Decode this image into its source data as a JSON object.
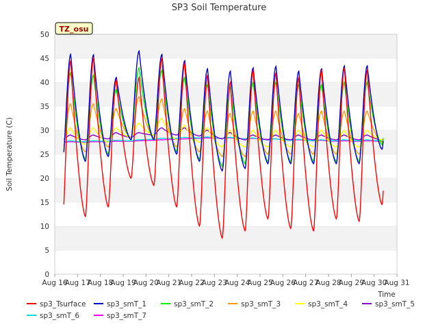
{
  "chart_data": {
    "type": "line",
    "title": "SP3 Soil Temperature",
    "ylabel": "Soil Temperature (C)",
    "xlabel": "Time",
    "ylim": [
      0,
      50
    ],
    "xlim": [
      16,
      31
    ],
    "yticks": [
      0,
      5,
      10,
      15,
      20,
      25,
      30,
      35,
      40,
      45,
      50
    ],
    "xticks": [
      {
        "v": 16,
        "label": "Aug 16"
      },
      {
        "v": 17,
        "label": "Aug 17"
      },
      {
        "v": 18,
        "label": "Aug 18"
      },
      {
        "v": 19,
        "label": "Aug 19"
      },
      {
        "v": 20,
        "label": "Aug 20"
      },
      {
        "v": 21,
        "label": "Aug 21"
      },
      {
        "v": 22,
        "label": "Aug 22"
      },
      {
        "v": 23,
        "label": "Aug 23"
      },
      {
        "v": 24,
        "label": "Aug 24"
      },
      {
        "v": 25,
        "label": "Aug 25"
      },
      {
        "v": 26,
        "label": "Aug 26"
      },
      {
        "v": 27,
        "label": "Aug 27"
      },
      {
        "v": 28,
        "label": "Aug 28"
      },
      {
        "v": 29,
        "label": "Aug 29"
      },
      {
        "v": 30,
        "label": "Aug 30"
      },
      {
        "v": 31,
        "label": "Aug 31"
      }
    ],
    "annotation": "TZ_osu",
    "grid": "horizontal bands",
    "legend_position": "bottom",
    "x_unit": "day of August",
    "days": [
      16,
      17,
      18,
      19,
      20,
      21,
      22,
      23,
      24,
      25,
      26,
      27,
      28,
      29,
      30
    ],
    "series": [
      {
        "name": "sp3_Tsurface",
        "color": "#ff0000",
        "daily_max": [
          44.5,
          45.0,
          40.5,
          41.0,
          45.0,
          44.0,
          41.5,
          40.0,
          42.5,
          42.0,
          41.0,
          42.5,
          43.0,
          42.5,
          42.0
        ],
        "daily_min": [
          11.0,
          12.0,
          14.0,
          20.0,
          18.5,
          14.0,
          10.0,
          7.5,
          9.0,
          11.5,
          9.5,
          9.0,
          11.5,
          11.0,
          14.5
        ]
      },
      {
        "name": "sp3_smT_1",
        "color": "#0000cc",
        "daily_max": [
          45.8,
          45.7,
          41.0,
          46.5,
          45.8,
          44.5,
          42.8,
          42.3,
          43.0,
          43.3,
          42.3,
          42.8,
          43.4,
          43.4,
          43.0
        ],
        "daily_min": [
          23.0,
          23.5,
          24.5,
          28.0,
          28.0,
          25.0,
          23.5,
          21.5,
          22.0,
          23.0,
          23.0,
          23.0,
          23.0,
          23.0,
          26.0
        ]
      },
      {
        "name": "sp3_smT_2",
        "color": "#00ee00",
        "daily_max": [
          42.0,
          41.5,
          38.5,
          43.0,
          42.5,
          41.0,
          39.5,
          39.0,
          40.0,
          40.0,
          39.5,
          39.5,
          40.0,
          40.0,
          40.0
        ],
        "daily_min": [
          24.0,
          24.0,
          25.0,
          28.0,
          28.0,
          25.5,
          24.0,
          22.5,
          23.0,
          23.5,
          23.5,
          23.5,
          23.5,
          23.5,
          27.0
        ]
      },
      {
        "name": "sp3_smT_3",
        "color": "#ff9900",
        "daily_max": [
          35.5,
          35.5,
          34.5,
          37.0,
          36.5,
          34.5,
          34.0,
          33.5,
          34.0,
          34.0,
          33.5,
          34.0,
          34.0,
          34.0,
          34.0
        ],
        "daily_min": [
          25.5,
          25.5,
          26.5,
          28.5,
          28.5,
          26.5,
          25.5,
          24.5,
          24.5,
          25.0,
          25.0,
          25.0,
          25.0,
          25.0,
          27.5
        ]
      },
      {
        "name": "sp3_smT_4",
        "color": "#ffff00",
        "daily_max": [
          30.5,
          30.5,
          30.5,
          31.5,
          32.5,
          31.0,
          30.5,
          30.0,
          30.0,
          30.0,
          30.0,
          30.0,
          30.0,
          30.0,
          30.0
        ],
        "daily_min": [
          27.0,
          27.0,
          27.5,
          28.5,
          29.0,
          28.0,
          27.5,
          26.5,
          26.5,
          26.5,
          26.5,
          26.5,
          26.5,
          26.5,
          28.0
        ]
      },
      {
        "name": "sp3_smT_5",
        "color": "#8800cc",
        "daily_max": [
          29.0,
          29.0,
          29.5,
          29.5,
          30.5,
          30.5,
          30.0,
          29.5,
          29.0,
          29.0,
          29.0,
          29.0,
          29.0,
          29.0,
          29.0
        ],
        "daily_min": [
          28.0,
          28.0,
          28.2,
          28.5,
          29.0,
          29.0,
          28.8,
          28.2,
          28.0,
          28.0,
          28.0,
          28.0,
          28.0,
          28.0,
          28.0
        ]
      },
      {
        "name": "sp3_smT_6",
        "color": "#00dddd",
        "daily_max": [
          27.8,
          27.8,
          27.9,
          28.0,
          28.3,
          28.5,
          28.6,
          28.5,
          28.4,
          28.2,
          28.1,
          28.0,
          28.0,
          28.0,
          28.0
        ],
        "daily_min": [
          27.6,
          27.6,
          27.7,
          27.8,
          28.1,
          28.3,
          28.4,
          28.3,
          28.2,
          28.0,
          27.9,
          27.8,
          27.8,
          27.8,
          27.8
        ]
      },
      {
        "name": "sp3_smT_7",
        "color": "#ff00ff",
        "daily_max": [
          27.6,
          27.6,
          27.7,
          27.8,
          28.0,
          28.2,
          28.4,
          28.4,
          28.3,
          28.2,
          28.0,
          27.9,
          27.8,
          27.8,
          27.8
        ],
        "daily_min": [
          27.5,
          27.5,
          27.6,
          27.7,
          27.9,
          28.1,
          28.3,
          28.3,
          28.2,
          28.1,
          27.9,
          27.8,
          27.7,
          27.7,
          27.7
        ]
      }
    ]
  }
}
